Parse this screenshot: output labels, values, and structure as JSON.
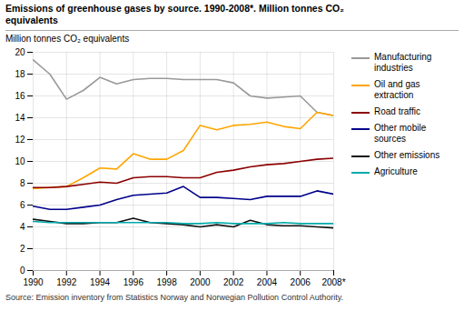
{
  "chart_data": {
    "type": "line",
    "title": "Emissions of greenhouse gases by source. 1990-2008*. Million tonnes CO₂\nequivalents",
    "ylabel": "Million tonnes CO₂ equivalents",
    "source": "Source: Emission inventory from Statistics Norway and Norwegian Pollution Control Authority.",
    "x": [
      1990,
      1991,
      1992,
      1993,
      1994,
      1995,
      1996,
      1997,
      1998,
      1999,
      2000,
      2001,
      2002,
      2003,
      2004,
      2005,
      2006,
      2007,
      2008
    ],
    "series": [
      {
        "name": "Manufacturing\nindustries",
        "color": "#999999",
        "values": [
          19.3,
          18.0,
          15.7,
          16.5,
          17.7,
          17.1,
          17.5,
          17.6,
          17.6,
          17.5,
          17.5,
          17.5,
          17.2,
          16.0,
          15.8,
          15.9,
          16.0,
          14.5,
          14.2
        ]
      },
      {
        "name": "Oil and gas\nextraction",
        "color": "#FFA500",
        "values": [
          7.5,
          7.6,
          7.7,
          8.5,
          9.4,
          9.3,
          10.7,
          10.2,
          10.2,
          11.0,
          13.3,
          12.9,
          13.3,
          13.4,
          13.6,
          13.2,
          13.0,
          14.5,
          14.2
        ]
      },
      {
        "name": "Road traffic",
        "color": "#8B0000",
        "values": [
          7.6,
          7.6,
          7.7,
          7.9,
          8.1,
          8.0,
          8.5,
          8.6,
          8.6,
          8.5,
          8.5,
          9.0,
          9.2,
          9.5,
          9.7,
          9.8,
          10.0,
          10.2,
          10.3
        ]
      },
      {
        "name": "Other mobile\nsources",
        "color": "#00008B",
        "values": [
          5.9,
          5.6,
          5.6,
          5.8,
          6.0,
          6.5,
          6.9,
          7.0,
          7.1,
          7.7,
          6.7,
          6.7,
          6.6,
          6.5,
          6.8,
          6.8,
          6.8,
          7.3,
          7.0
        ]
      },
      {
        "name": "Other emissions",
        "color": "#111111",
        "values": [
          4.7,
          4.5,
          4.3,
          4.3,
          4.4,
          4.4,
          4.8,
          4.4,
          4.3,
          4.2,
          4.0,
          4.2,
          4.0,
          4.6,
          4.2,
          4.1,
          4.1,
          4.0,
          3.9
        ]
      },
      {
        "name": "Agriculture",
        "color": "#00AAAA",
        "values": [
          4.5,
          4.4,
          4.4,
          4.4,
          4.4,
          4.4,
          4.4,
          4.4,
          4.4,
          4.3,
          4.3,
          4.4,
          4.3,
          4.3,
          4.3,
          4.4,
          4.3,
          4.3,
          4.3
        ]
      }
    ],
    "xlim": [
      1990,
      2008
    ],
    "xticks": [
      1990,
      1992,
      1994,
      1996,
      1998,
      2000,
      2002,
      2004,
      2006,
      {
        "value": 2008,
        "label": "2008*"
      }
    ],
    "ylim": [
      0,
      20
    ],
    "yticks": [
      0,
      2,
      4,
      6,
      8,
      10,
      12,
      14,
      16,
      18,
      20
    ],
    "grid": true,
    "legend": "right"
  }
}
